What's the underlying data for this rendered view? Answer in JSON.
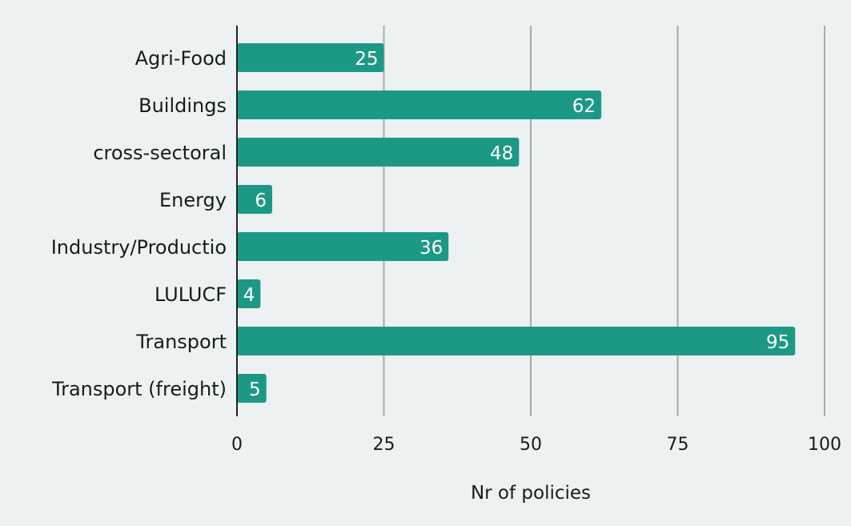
{
  "chart_data": {
    "type": "bar",
    "orientation": "horizontal",
    "categories": [
      "Agri-Food",
      "Buildings",
      "cross-sectoral",
      "Energy",
      "Industry/Productio",
      "LULUCF",
      "Transport",
      "Transport (freight)"
    ],
    "values": [
      25,
      62,
      48,
      6,
      36,
      4,
      95,
      5
    ],
    "data_labels": [
      "25",
      "62",
      "48",
      "6",
      "36",
      "4",
      "95",
      "5"
    ],
    "xlabel": "Nr of policies",
    "ylabel": "",
    "xlim": [
      0,
      100
    ],
    "xticks": [
      0,
      25,
      50,
      75,
      100
    ],
    "xtick_labels": [
      "0",
      "25",
      "50",
      "75",
      "100"
    ],
    "grid": true,
    "legend": "none",
    "colors": {
      "bar": "#1c9985",
      "background": "#eef1f2",
      "grid": "#a9a9a9",
      "axis": "#222222",
      "data_label": "#ffffff"
    }
  }
}
